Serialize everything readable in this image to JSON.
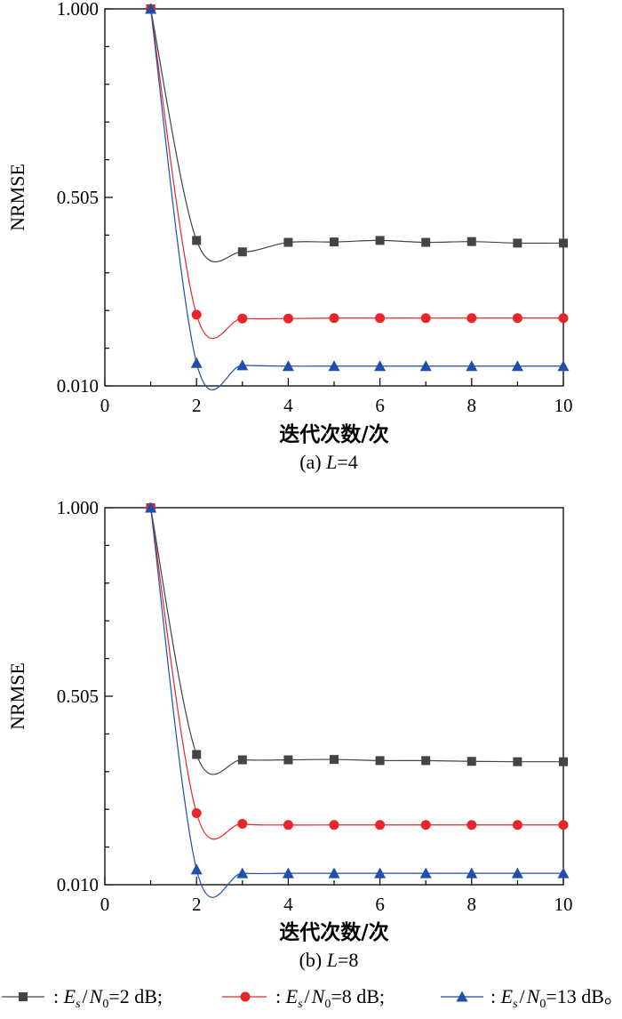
{
  "chart_data": [
    {
      "type": "line",
      "caption": "(a) L=4",
      "caption_prefix": "(a) ",
      "caption_var": "L",
      "caption_suffix": "=4",
      "xlabel": "迭代次数/次",
      "ylabel": "NRMSE",
      "xlim": [
        0,
        10
      ],
      "ylim": [
        0.01,
        1.0
      ],
      "xticks": [
        "0",
        "2",
        "4",
        "6",
        "8",
        "10"
      ],
      "yticks": [
        "0.010",
        "0.505",
        "1.000"
      ],
      "x": [
        1,
        2,
        3,
        4,
        5,
        6,
        7,
        8,
        9,
        10
      ],
      "series": [
        {
          "key": "snr2",
          "values": [
            1.0,
            0.392,
            0.362,
            0.387,
            0.388,
            0.392,
            0.387,
            0.389,
            0.385,
            0.385
          ],
          "color": "#444444",
          "marker": "square"
        },
        {
          "key": "snr8",
          "values": [
            1.0,
            0.197,
            0.187,
            0.187,
            0.188,
            0.188,
            0.188,
            0.188,
            0.188,
            0.188
          ],
          "color": "#e8262a",
          "marker": "circle"
        },
        {
          "key": "snr13",
          "values": [
            1.0,
            0.07,
            0.064,
            0.062,
            0.062,
            0.062,
            0.062,
            0.062,
            0.062,
            0.062
          ],
          "color": "#1f4fa8",
          "marker": "triangle"
        }
      ]
    },
    {
      "type": "line",
      "caption": "(b) L=8",
      "caption_prefix": "(b) ",
      "caption_var": "L",
      "caption_suffix": "=8",
      "xlabel": "迭代次数/次",
      "ylabel": "NRMSE",
      "xlim": [
        0,
        10
      ],
      "ylim": [
        0.01,
        1.0
      ],
      "xticks": [
        "0",
        "2",
        "4",
        "6",
        "8",
        "10"
      ],
      "yticks": [
        "0.010",
        "0.505",
        "1.000"
      ],
      "x": [
        1,
        2,
        3,
        4,
        5,
        6,
        7,
        8,
        9,
        10
      ],
      "series": [
        {
          "key": "snr2",
          "values": [
            1.0,
            0.352,
            0.338,
            0.338,
            0.339,
            0.336,
            0.336,
            0.334,
            0.333,
            0.333
          ],
          "color": "#444444",
          "marker": "square"
        },
        {
          "key": "snr8",
          "values": [
            1.0,
            0.198,
            0.17,
            0.167,
            0.167,
            0.167,
            0.167,
            0.167,
            0.167,
            0.167
          ],
          "color": "#e8262a",
          "marker": "circle"
        },
        {
          "key": "snr13",
          "values": [
            1.0,
            0.05,
            0.04,
            0.04,
            0.04,
            0.04,
            0.04,
            0.04,
            0.04,
            0.04
          ],
          "color": "#1f4fa8",
          "marker": "triangle"
        }
      ]
    }
  ],
  "legend": [
    {
      "key": "snr2",
      "prefix": ": ",
      "es": "E",
      "es_sub": "s",
      "sep": "/",
      "n0": "N",
      "n0_sub": "0",
      "value": "=2 dB;",
      "color": "#444444",
      "marker": "square"
    },
    {
      "key": "snr8",
      "prefix": ": ",
      "es": "E",
      "es_sub": "s",
      "sep": "/",
      "n0": "N",
      "n0_sub": "0",
      "value": "=8 dB;",
      "color": "#e8262a",
      "marker": "circle"
    },
    {
      "key": "snr13",
      "prefix": ": ",
      "es": "E",
      "es_sub": "s",
      "sep": "/",
      "n0": "N",
      "n0_sub": "0",
      "value": "=13 dB。",
      "color": "#1f4fa8",
      "marker": "triangle"
    }
  ]
}
